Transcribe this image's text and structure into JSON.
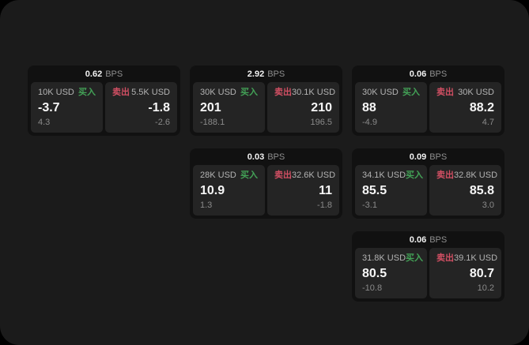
{
  "panel": {
    "page_background": "#000000",
    "panel_background": "#1b1b1b",
    "card_background": "#111111",
    "subpanel_background": "#242424"
  },
  "colors": {
    "buy": "#43a257",
    "sell": "#d14f63",
    "value_text": "#f7f7f7",
    "muted_text": "#8a8a8a"
  },
  "labels": {
    "bps_unit": "BPS",
    "buy": "买入",
    "sell": "卖出"
  },
  "cards": [
    {
      "bps": "0.62",
      "col": 1,
      "row": 1,
      "buy": {
        "amount": "10K USD",
        "value": "-3.7",
        "change": "4.3"
      },
      "sell": {
        "amount": "5.5K USD",
        "value": "-1.8",
        "change": "-2.6"
      }
    },
    {
      "bps": "2.92",
      "col": 2,
      "row": 1,
      "buy": {
        "amount": "30K USD",
        "value": "201",
        "change": "-188.1"
      },
      "sell": {
        "amount": "30.1K USD",
        "value": "210",
        "change": "196.5"
      }
    },
    {
      "bps": "0.06",
      "col": 3,
      "row": 1,
      "buy": {
        "amount": "30K USD",
        "value": "88",
        "change": "-4.9"
      },
      "sell": {
        "amount": "30K USD",
        "value": "88.2",
        "change": "4.7"
      }
    },
    {
      "bps": "0.03",
      "col": 2,
      "row": 2,
      "buy": {
        "amount": "28K USD",
        "value": "10.9",
        "change": "1.3"
      },
      "sell": {
        "amount": "32.6K USD",
        "value": "11",
        "change": "-1.8"
      }
    },
    {
      "bps": "0.09",
      "col": 3,
      "row": 2,
      "buy": {
        "amount": "34.1K USD",
        "value": "85.5",
        "change": "-3.1"
      },
      "sell": {
        "amount": "32.8K USD",
        "value": "85.8",
        "change": "3.0"
      }
    },
    {
      "bps": "0.06",
      "col": 3,
      "row": 3,
      "buy": {
        "amount": "31.8K USD",
        "value": "80.5",
        "change": "-10.8"
      },
      "sell": {
        "amount": "39.1K USD",
        "value": "80.7",
        "change": "10.2"
      }
    }
  ]
}
